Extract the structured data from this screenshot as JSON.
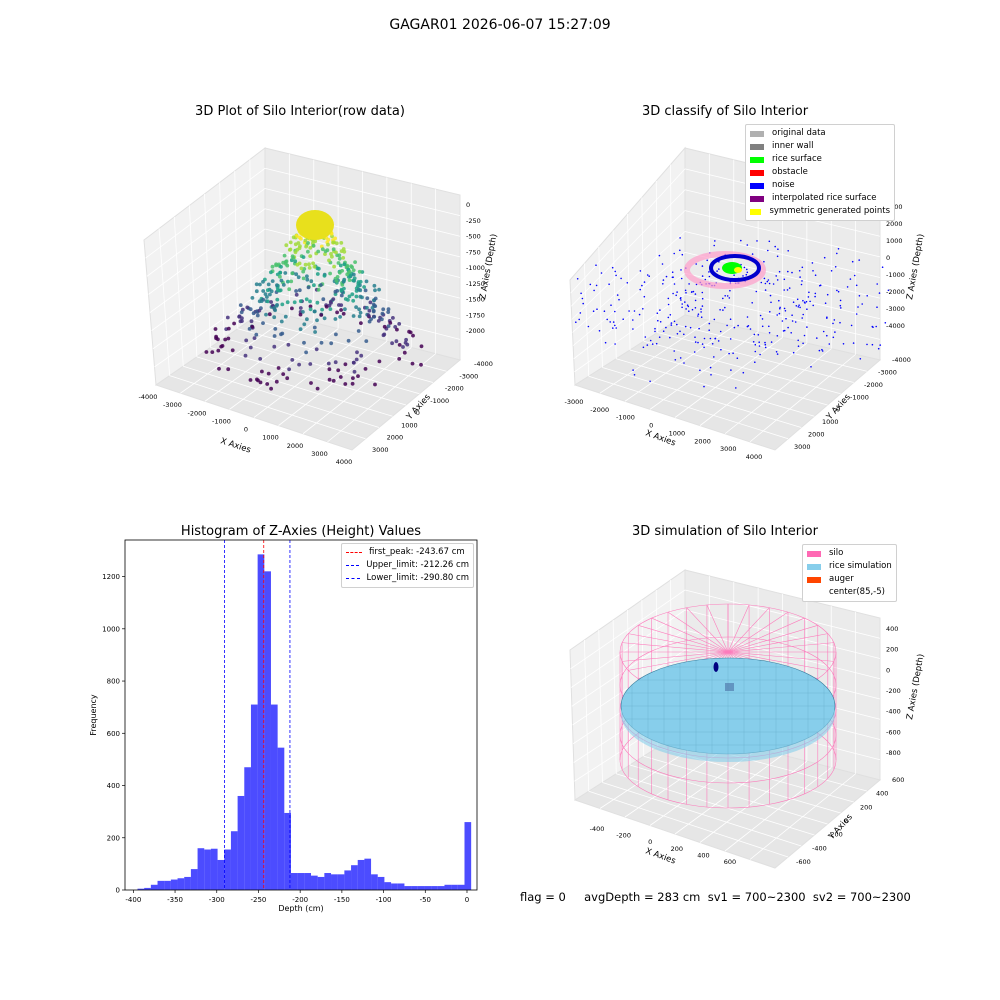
{
  "suptitle": "GAGAR01 2026-06-07 15:27:09",
  "panel1": {
    "title": "3D Plot of Silo Interior(row data)",
    "xlabel": "X Axies",
    "ylabel": "Y Axies",
    "zlabel": "Z Axies (Depth)",
    "xticks": [
      "-4000",
      "-3000",
      "-2000",
      "-1000",
      "0",
      "1000",
      "2000",
      "3000",
      "4000"
    ],
    "yticks": [
      "-4000",
      "-3000",
      "-2000",
      "-1000",
      "0",
      "1000",
      "2000",
      "3000"
    ],
    "zticks": [
      "0",
      "-250",
      "-500",
      "-750",
      "-1000",
      "-1250",
      "-1500",
      "-1750",
      "-2000"
    ]
  },
  "panel2": {
    "title": "3D classify of Silo Interior",
    "xlabel": "X Axies",
    "ylabel": "Y Axies",
    "zlabel": "Z Axies (Depth)",
    "xticks": [
      "-3000",
      "-2000",
      "-1000",
      "0",
      "1000",
      "2000",
      "3000",
      "4000"
    ],
    "yticks": [
      "-4000",
      "-3000",
      "-2000",
      "-1000",
      "0",
      "1000",
      "2000",
      "3000"
    ],
    "zticks": [
      "3000",
      "2000",
      "1000",
      "0",
      "-1000",
      "-2000",
      "-3000",
      "-4000"
    ],
    "legend": [
      {
        "label": "original data",
        "color": "#b0b0b0"
      },
      {
        "label": "inner wall",
        "color": "#808080"
      },
      {
        "label": "rice surface",
        "color": "#00ff00"
      },
      {
        "label": "obstacle",
        "color": "#ff0000"
      },
      {
        "label": "noise",
        "color": "#0000ff"
      },
      {
        "label": "interpolated rice surface",
        "color": "#800080"
      },
      {
        "label": "symmetric generated points",
        "color": "#ffff00"
      }
    ]
  },
  "panel3": {
    "title": "Histogram of Z-Axies (Height) Values",
    "legend": [
      {
        "label": "first_peak: -243.67 cm",
        "color": "#ff0000"
      },
      {
        "label": "Upper_limit: -212.26 cm",
        "color": "#0000ff"
      },
      {
        "label": "Lower_limit: -290.80 cm",
        "color": "#0000ff"
      }
    ]
  },
  "panel4": {
    "title": "3D simulation of Silo Interior",
    "xlabel": "X Axies",
    "ylabel": "Y Axies",
    "zlabel": "Z Axies (Depth)",
    "xticks": [
      "-400",
      "-200",
      "0",
      "200",
      "400",
      "600"
    ],
    "yticks": [
      "-600",
      "-400",
      "-200",
      "0",
      "200",
      "400",
      "600"
    ],
    "zticks": [
      "400",
      "200",
      "0",
      "-200",
      "-400",
      "-600",
      "-800"
    ],
    "legend": [
      {
        "label": "silo",
        "color": "#ff69b4"
      },
      {
        "label": "rice simulation",
        "color": "#87ceeb"
      },
      {
        "label": "auger",
        "color": "#ff4500"
      },
      {
        "label": "center(85,-5)",
        "color": ""
      }
    ]
  },
  "footer": "flag = 0     avgDepth = 283 cm  sv1 = 700~2300  sv2 = 700~2300",
  "chart_data": {
    "type": "bar",
    "title": "Histogram of Z-Axies (Height) Values",
    "xlabel": "Depth (cm)",
    "ylabel": "Frequency",
    "xlim": [
      -410,
      12
    ],
    "ylim": [
      0,
      1340
    ],
    "xticks": [
      -400,
      -350,
      -300,
      -250,
      -200,
      -150,
      -100,
      -50,
      0
    ],
    "yticks": [
      0,
      200,
      400,
      600,
      800,
      1000,
      1200
    ],
    "bin_width": 8,
    "bin_starts": [
      -395,
      -387,
      -379,
      -371,
      -363,
      -355,
      -347,
      -339,
      -331,
      -323,
      -315,
      -307,
      -299,
      -291,
      -283,
      -275,
      -267,
      -259,
      -251,
      -243,
      -235,
      -227,
      -219,
      -211,
      -203,
      -195,
      -187,
      -179,
      -171,
      -163,
      -155,
      -147,
      -139,
      -131,
      -123,
      -115,
      -107,
      -99,
      -91,
      -83,
      -75,
      -67,
      -59,
      -51,
      -43,
      -35,
      -27,
      -19,
      -11,
      -3
    ],
    "values": [
      5,
      8,
      20,
      35,
      35,
      40,
      45,
      50,
      80,
      160,
      155,
      158,
      115,
      155,
      225,
      360,
      470,
      710,
      1285,
      1220,
      710,
      545,
      295,
      65,
      65,
      65,
      55,
      50,
      65,
      60,
      60,
      75,
      95,
      115,
      120,
      60,
      50,
      30,
      25,
      25,
      15,
      15,
      15,
      15,
      15,
      15,
      20,
      20,
      20,
      260
    ],
    "bar_color": "#0000ff",
    "vlines": [
      {
        "x": -243.67,
        "color": "#ff0000",
        "label": "first_peak: -243.67 cm"
      },
      {
        "x": -212.26,
        "color": "#0000ff",
        "label": "Upper_limit: -212.26 cm"
      },
      {
        "x": -290.8,
        "color": "#0000ff",
        "label": "Lower_limit: -290.80 cm"
      }
    ],
    "legend_position": "top-right"
  }
}
